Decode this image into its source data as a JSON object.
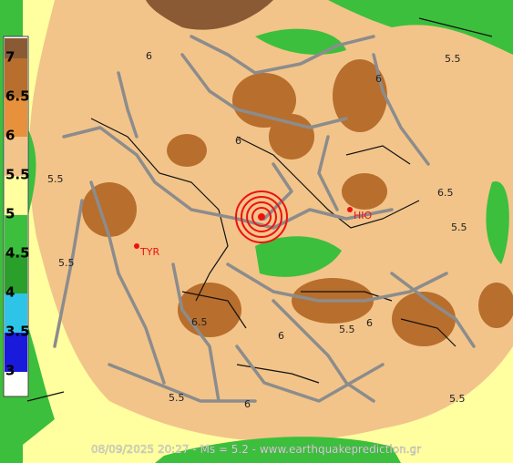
{
  "legend": {
    "labels": [
      "7",
      "6.5",
      "6",
      "5.5",
      "5",
      "4.5",
      "4",
      "3.5",
      "3"
    ],
    "colors": [
      "#8a5a34",
      "#b86e2c",
      "#e8913c",
      "#f2c48a",
      "#ffffa0",
      "#3cbf3c",
      "#2aa02a",
      "#2ec4e8",
      "#1a1adc"
    ]
  },
  "map": {
    "contour_labels": [
      "6",
      "5.5",
      "6",
      "5.5",
      "6",
      "6.5",
      "5.5",
      "5.5",
      "6.5",
      "6",
      "5.5",
      "6",
      "5.5",
      "5.5",
      "6"
    ],
    "cities": [
      "TYR",
      "HIO"
    ]
  },
  "footer": "08/09/2025 20:27 - Ms = 5.2 - www.earthquakeprediction.gr"
}
